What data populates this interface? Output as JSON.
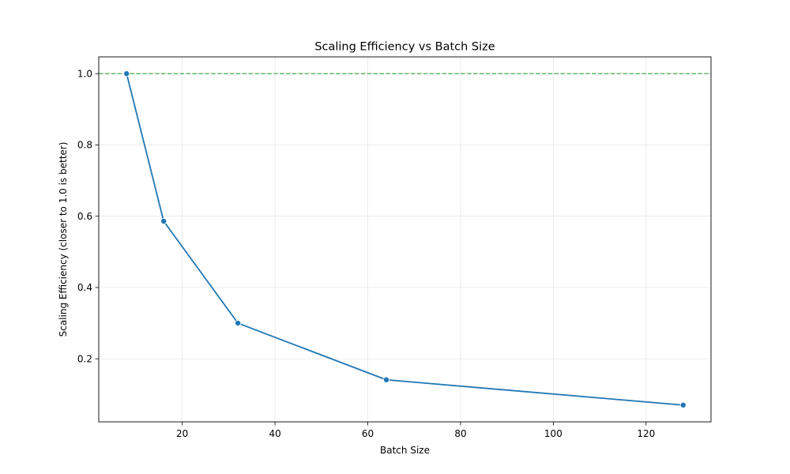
{
  "chart_data": {
    "type": "line",
    "title": "Scaling Efficiency vs Batch Size",
    "xlabel": "Batch Size",
    "ylabel": "Scaling Efficiency (closer to 1.0 is better)",
    "xlim": [
      2,
      134
    ],
    "ylim": [
      0.023,
      1.047
    ],
    "xticks": [
      20,
      40,
      60,
      80,
      100,
      120
    ],
    "yticks": [
      0.2,
      0.4,
      0.6,
      0.8,
      1.0
    ],
    "ytick_labels": [
      "0.2",
      "0.4",
      "0.6",
      "0.8",
      "1.0"
    ],
    "grid": true,
    "series": [
      {
        "x": [
          8,
          16,
          32,
          64,
          128
        ],
        "y": [
          1.0,
          0.586,
          0.3,
          0.141,
          0.07
        ],
        "color": "#1f77b4",
        "marker": "circle"
      }
    ],
    "reference_line": {
      "y": 1.0,
      "color": "#2ca02c",
      "style": "dashed"
    }
  }
}
